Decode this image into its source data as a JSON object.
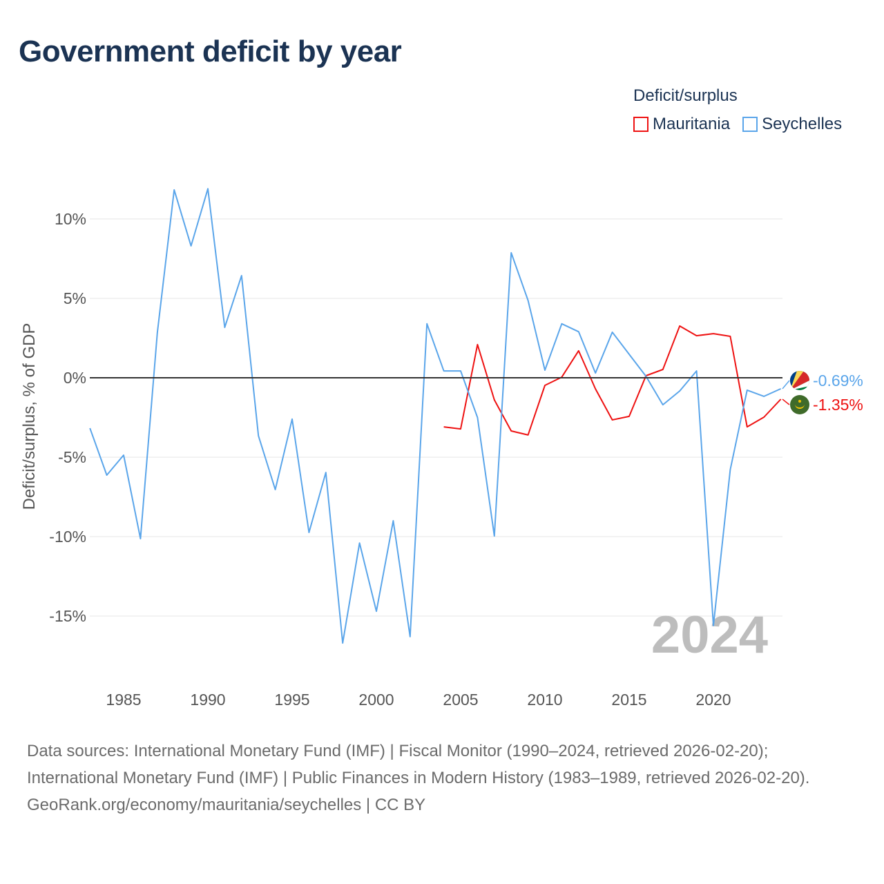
{
  "chart_data": {
    "type": "line",
    "title": "Government deficit by year",
    "ylabel": "Deficit/surplus, % of GDP",
    "xlabel": "",
    "xlim": [
      1983,
      2024
    ],
    "ylim": [
      -18,
      13
    ],
    "x_ticks": [
      1985,
      1990,
      1995,
      2000,
      2005,
      2010,
      2015,
      2020
    ],
    "y_ticks": [
      10,
      5,
      0,
      -5,
      -10,
      -15
    ],
    "y_tick_labels": [
      "10%",
      "5%",
      "0%",
      "-5%",
      "-10%",
      "-15%"
    ],
    "grid": true,
    "legend_title": "Deficit/surplus",
    "legend_position": "top-right",
    "year_watermark": "2024",
    "series": [
      {
        "name": "Mauritania",
        "color": "#ee1111",
        "end_label": "-1.35%",
        "x": [
          2004,
          2005,
          2006,
          2007,
          2008,
          2009,
          2010,
          2011,
          2012,
          2013,
          2014,
          2015,
          2016,
          2017,
          2018,
          2019,
          2020,
          2021,
          2022,
          2023,
          2024
        ],
        "values": [
          -3.09,
          -3.22,
          2.09,
          -1.39,
          -3.35,
          -3.6,
          -0.48,
          0.04,
          1.7,
          -0.7,
          -2.65,
          -2.43,
          0.13,
          0.52,
          3.26,
          2.65,
          2.78,
          2.61,
          -3.09,
          -2.48,
          -1.35
        ]
      },
      {
        "name": "Seychelles",
        "color": "#5aa5ea",
        "end_label": "-0.69%",
        "x": [
          1983,
          1984,
          1985,
          1986,
          1987,
          1988,
          1989,
          1990,
          1991,
          1992,
          1993,
          1994,
          1995,
          1996,
          1997,
          1998,
          1999,
          2000,
          2001,
          2002,
          2003,
          2004,
          2005,
          2006,
          2007,
          2008,
          2009,
          2010,
          2011,
          2012,
          2013,
          2014,
          2015,
          2016,
          2017,
          2018,
          2019,
          2020,
          2021,
          2022,
          2023,
          2024
        ],
        "values": [
          -3.17,
          -6.13,
          -4.87,
          -10.13,
          2.83,
          11.83,
          8.3,
          11.9,
          3.17,
          6.43,
          -3.65,
          -7.04,
          -2.6,
          -9.74,
          -5.96,
          -16.7,
          -10.4,
          -14.7,
          -9.0,
          -16.3,
          3.4,
          0.43,
          0.43,
          -2.5,
          -9.96,
          7.87,
          4.87,
          0.48,
          3.4,
          2.9,
          0.3,
          2.87,
          1.48,
          0.09,
          -1.7,
          -0.83,
          0.43,
          -15.6,
          -5.78,
          -0.78,
          -1.17,
          -0.69
        ]
      }
    ]
  },
  "footer": {
    "sources": "Data sources: International Monetary Fund (IMF) | Fiscal Monitor (1990–2024, retrieved 2026-02-20); International Monetary Fund (IMF) | Public Finances in Modern History (1983–1989, retrieved 2026-02-20).",
    "credit": "GeoRank.org/economy/mauritania/seychelles | CC BY"
  }
}
